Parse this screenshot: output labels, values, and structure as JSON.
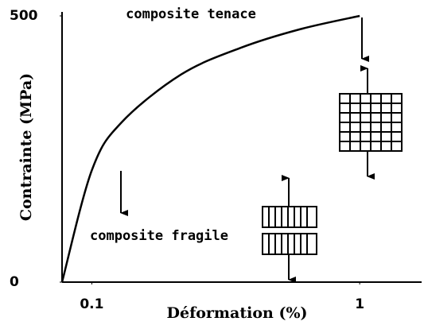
{
  "chart_data": {
    "type": "line",
    "x_label": "Déformation (%)",
    "y_label": "Contrainte (MPa)",
    "x": [
      0,
      0.1,
      0.2,
      0.4,
      0.6,
      0.8,
      1
    ],
    "series": [
      {
        "name": "composite tenace",
        "color": "#000000",
        "values": [
          0,
          210,
          300,
          390,
          440,
          475,
          500
        ]
      }
    ],
    "xlim": [
      0,
      1.2
    ],
    "ylim": [
      0,
      500
    ],
    "xticks": [
      0.1,
      1
    ],
    "yticks": [
      0,
      500
    ],
    "annotations": [
      {
        "text": "composite tenace"
      },
      {
        "text": "composite fragile"
      }
    ]
  }
}
